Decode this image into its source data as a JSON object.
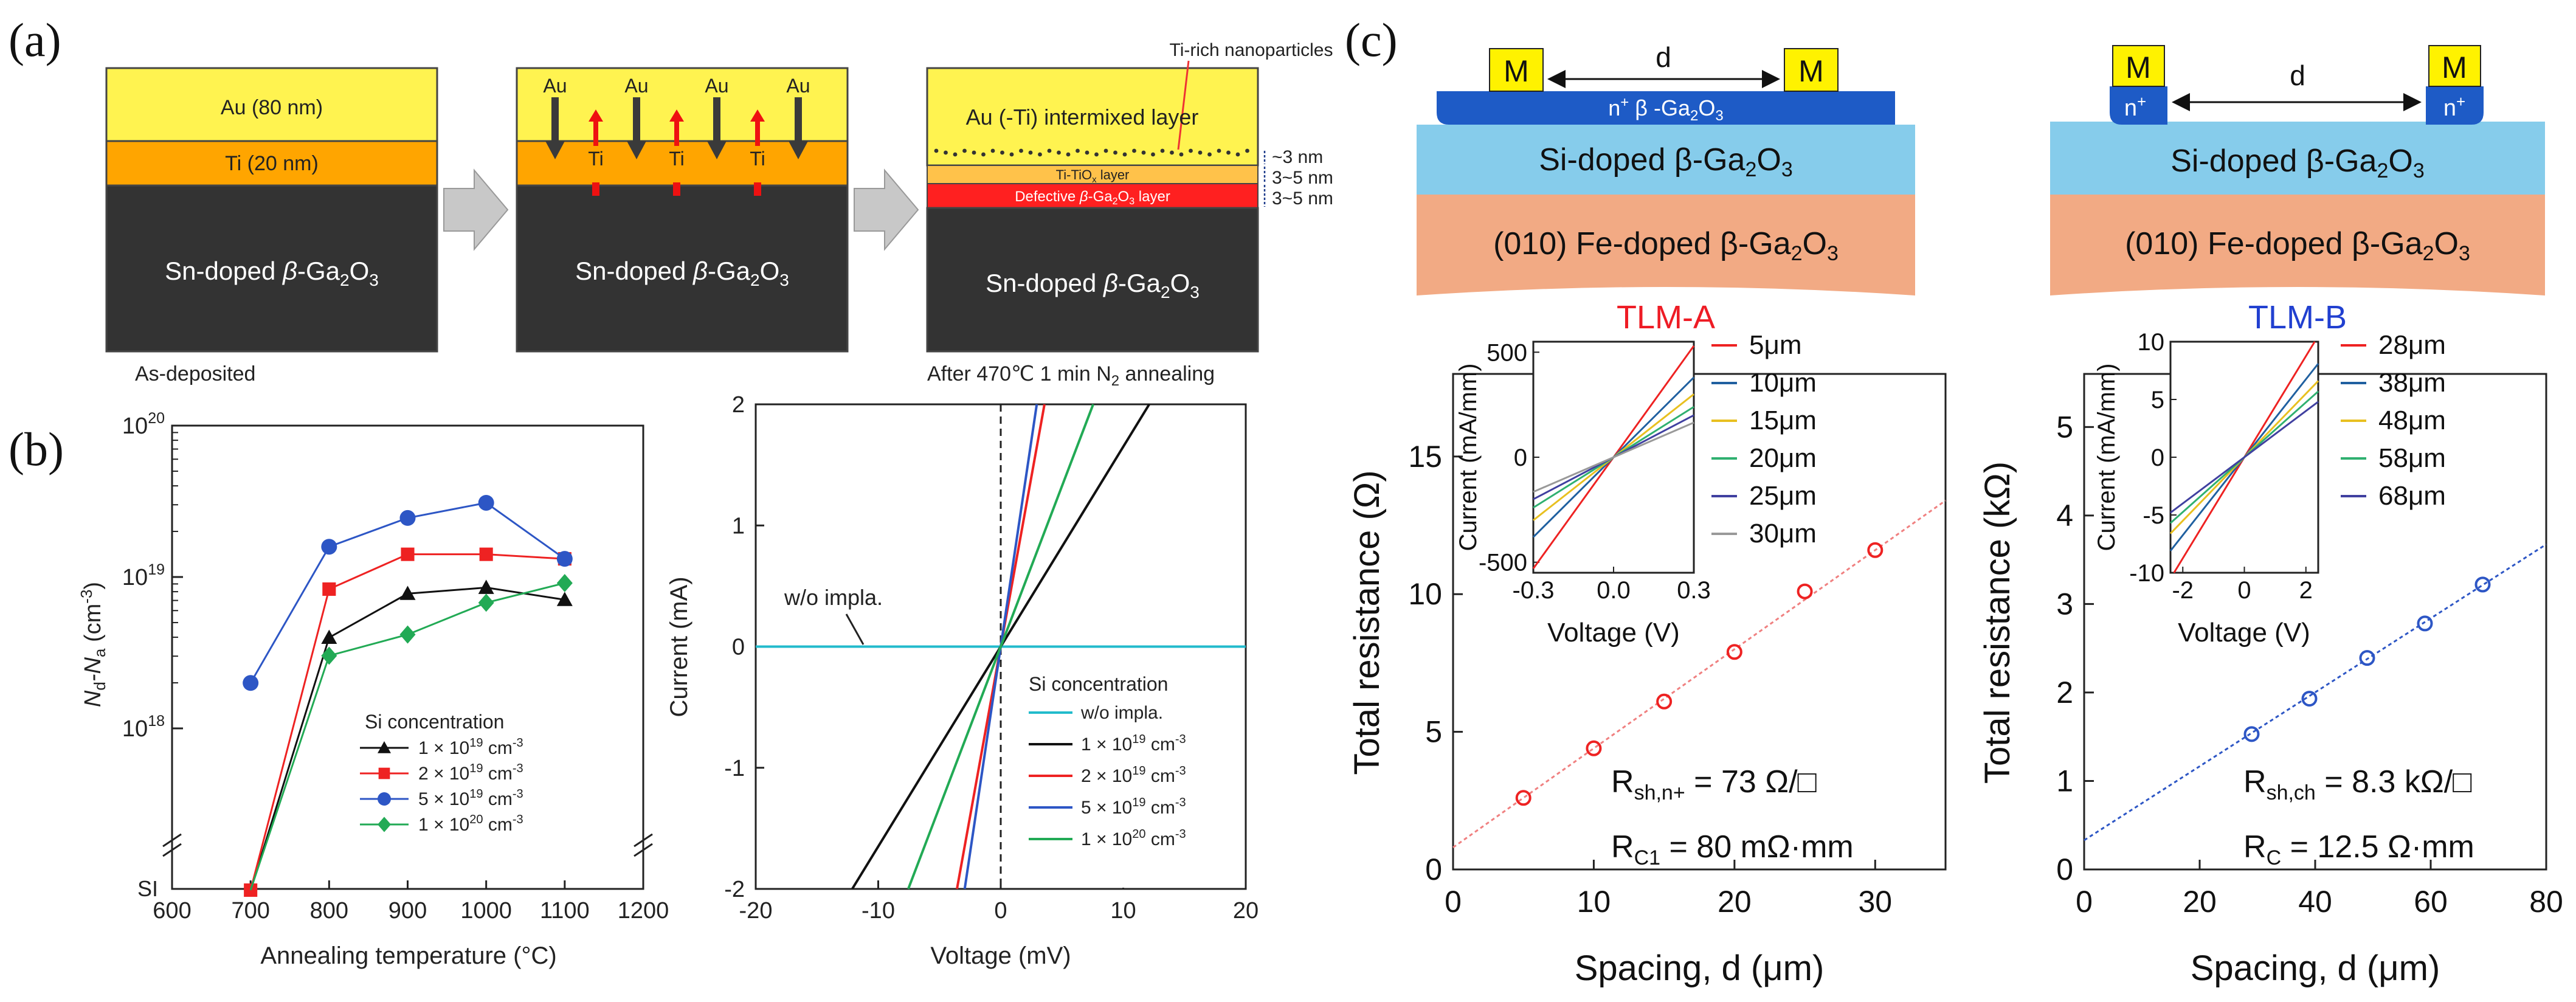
{
  "colors": {
    "au_gold": "#FFF350",
    "ti_orange": "#FFA500",
    "ti_orange_light": "#FFC24A",
    "ga2o3_dark": "#333333",
    "defect_red": "#FF2020",
    "arrow_gray": "#C8C8C8",
    "arrow_dark": "#3A3A3A",
    "arrow_red": "#EE1111",
    "metal_yellow": "#FFF200",
    "n_plus_blue": "#1E5BC6",
    "si_light_blue": "#86CCEB",
    "fe_orange": "#F2AA84",
    "black": "#111111",
    "red": "#EE2222",
    "blue": "#2D56C5",
    "green": "#22AA55",
    "cyan": "#22BBCC",
    "c1": "#2060A0",
    "c2": "#E8C020",
    "c3": "#30B070",
    "c4": "#4040A0",
    "c5": "#999999",
    "tlma_title": "#EE1C25",
    "tlmb_title": "#2140D0"
  },
  "panel_a": {
    "label": "(a)",
    "stack1": {
      "au": "Au (80 nm)",
      "ti": "Ti (20 nm)",
      "sub_pre": "Sn-doped ",
      "sub_beta": "β",
      "sub_mid": "-Ga",
      "sub_2": "2",
      "sub_o": "O",
      "sub_3": "3"
    },
    "stack2": {
      "arrow_labels_au": [
        "Au",
        "Au",
        "Au",
        "Au"
      ],
      "arrow_labels_ti": [
        "Ti",
        "Ti",
        "Ti"
      ],
      "sub_pre": "Sn-doped ",
      "sub_beta": "β",
      "sub_mid": "-Ga",
      "sub_2": "2",
      "sub_o": "O",
      "sub_3": "3"
    },
    "stack3": {
      "nano": "Ti-rich nanoparticles",
      "au": "Au (-Ti) intermixed layer",
      "tiox_pre": "Ti-TiO",
      "tiox_sub": "x",
      "tiox_post": " layer",
      "defect_pre": "Defective ",
      "defect_beta": "β",
      "defect_mid": "-Ga",
      "defect_2": "2",
      "defect_o": "O",
      "defect_3": "3",
      "defect_post": " layer",
      "sub_pre": "Sn-doped ",
      "sub_beta": "β",
      "sub_mid": "-Ga",
      "sub_2": "2",
      "sub_o": "O",
      "sub_3": "3",
      "thick1": "~3 nm",
      "thick2": "3~5 nm",
      "thick3": "3~5 nm"
    },
    "caption_left": "As-deposited",
    "caption_right_pre": "After 470℃  1 min N",
    "caption_right_sub": "2",
    "caption_right_post": " annealing"
  },
  "panel_b": {
    "label": "(b)"
  },
  "panel_c": {
    "label": "(c)",
    "structA": {
      "m": "M",
      "d": "d",
      "nplus": "n",
      "nplus_sup": "+",
      "nplus_rest": " β -Ga",
      "nplus_2": "2",
      "nplus_o": "O",
      "nplus_3": "3",
      "si": "Si-doped β-Ga",
      "si_2": "2",
      "si_o": "O",
      "si_3": "3",
      "fe": "(010) Fe-doped β-Ga",
      "fe_2": "2",
      "fe_o": "O",
      "fe_3": "3"
    },
    "structB": {
      "m": "M",
      "d": "d",
      "nplus": "n",
      "nplus_sup": "+",
      "si": "Si-doped β-Ga",
      "si_2": "2",
      "si_o": "O",
      "si_3": "3",
      "fe": "(010) Fe-doped β-Ga",
      "fe_2": "2",
      "fe_o": "O",
      "fe_3": "3"
    },
    "titleA": "TLM-A",
    "titleB": "TLM-B",
    "annotA1_main": "R",
    "annotA1_sub": "sh,n+",
    "annotA1_rest": " = 73 Ω/□",
    "annotA2_main": "R",
    "annotA2_sub": "C1",
    "annotA2_rest": " = 80 mΩ·mm",
    "annotB1_main": "R",
    "annotB1_sub": "sh,ch",
    "annotB1_rest": " = 8.3 kΩ/□",
    "annotB2_main": "R",
    "annotB2_sub": "C",
    "annotB2_rest": " = 12.5 Ω·mm"
  },
  "chart_data": [
    {
      "id": "b_left",
      "type": "line",
      "xlabel": "Annealing temperature (°C)",
      "ylabel_main": "N",
      "ylabel_d": "d",
      "ylabel_mid": "-N",
      "ylabel_a": "a",
      "ylabel_unit": " (cm",
      "ylabel_exp": "-3",
      "ylabel_close": ")",
      "xlim": [
        600,
        1200
      ],
      "xticks": [
        600,
        700,
        800,
        900,
        1000,
        1100,
        1200
      ],
      "ylim_log": [
        18,
        20
      ],
      "ytick_labels": [
        {
          "b": "10",
          "e": "18",
          "v": 18
        },
        {
          "b": "10",
          "e": "19",
          "v": 19
        },
        {
          "b": "10",
          "e": "20",
          "v": 20
        }
      ],
      "si_label": "SI",
      "legend_title": "Si concentration",
      "series": [
        {
          "name": "1 × 10",
          "exp": "19",
          "unit": " cm",
          "uexp": "-3",
          "color": "#111111",
          "marker": "triangle",
          "x": [
            700,
            800,
            900,
            1000,
            1100
          ],
          "log10": [
            null,
            18.6,
            18.89,
            18.93,
            18.85
          ]
        },
        {
          "name": "2 × 10",
          "exp": "19",
          "unit": " cm",
          "uexp": "-3",
          "color": "#EE2222",
          "marker": "square",
          "x": [
            700,
            800,
            900,
            1000,
            1100
          ],
          "log10": [
            null,
            18.92,
            19.15,
            19.15,
            19.12
          ]
        },
        {
          "name": "5 × 10",
          "exp": "19",
          "unit": " cm",
          "uexp": "-3",
          "color": "#2D56C5",
          "marker": "circle",
          "x": [
            700,
            800,
            900,
            1000,
            1100
          ],
          "log10": [
            18.3,
            19.2,
            19.39,
            19.49,
            19.12
          ]
        },
        {
          "name": "1 × 10",
          "exp": "20",
          "unit": " cm",
          "uexp": "-3",
          "color": "#22AA55",
          "marker": "diamond",
          "x": [
            700,
            800,
            900,
            1000,
            1100
          ],
          "log10": [
            null,
            18.48,
            18.62,
            18.83,
            18.96
          ]
        }
      ],
      "si_points": {
        "x": [
          700
        ],
        "note": "SI"
      }
    },
    {
      "id": "b_right",
      "type": "line",
      "xlabel": "Voltage (mV)",
      "ylabel": "Current (mA)",
      "xlim": [
        -20,
        20
      ],
      "ylim": [
        -2,
        2
      ],
      "xticks": [
        -20,
        -10,
        0,
        10,
        20
      ],
      "yticks": [
        -2,
        -1,
        0,
        1,
        2
      ],
      "annotation": "w/o impla.",
      "legend_title": "Si concentration",
      "series": [
        {
          "name": "w/o impla.",
          "exp": "",
          "unit": "",
          "uexp": "",
          "color": "#22BBCC",
          "slope": 0
        },
        {
          "name": "1 × 10",
          "exp": "19",
          "unit": " cm",
          "uexp": "-3",
          "color": "#111111",
          "slope": 0.165
        },
        {
          "name": "2 × 10",
          "exp": "19",
          "unit": " cm",
          "uexp": "-3",
          "color": "#EE2222",
          "slope": 0.56
        },
        {
          "name": "5 × 10",
          "exp": "19",
          "unit": " cm",
          "uexp": "-3",
          "color": "#2D56C5",
          "slope": 0.68
        },
        {
          "name": "1 × 10",
          "exp": "20",
          "unit": " cm",
          "uexp": "-3",
          "color": "#22AA55",
          "slope": 0.265
        }
      ]
    },
    {
      "id": "c_A",
      "type": "scatter",
      "xlabel": "Spacing, d (μm)",
      "ylabel": "Total resistance (Ω)",
      "xlim": [
        0,
        35
      ],
      "ylim": [
        0,
        18
      ],
      "xticks": [
        0,
        10,
        20,
        30
      ],
      "yticks": [
        0,
        5,
        10,
        15
      ],
      "points": {
        "x": [
          5,
          10,
          15,
          20,
          25,
          30
        ],
        "y": [
          2.6,
          4.4,
          6.1,
          7.9,
          10.1,
          11.6
        ]
      },
      "fit": {
        "intercept": 0.8,
        "slope": 0.36
      },
      "inset": {
        "xlabel": "Voltage (V)",
        "ylabel": "Current (mA/mm)",
        "xlim": [
          -0.3,
          0.3
        ],
        "ylim": [
          -550,
          550
        ],
        "xticks": [
          -0.3,
          0.0,
          0.3
        ],
        "xtick_labels": [
          "-0.3",
          "0.0",
          "0.3"
        ],
        "yticks": [
          -500,
          0,
          500
        ],
        "ytick_labels": [
          "-500",
          "0",
          "500"
        ],
        "series": [
          {
            "name": "5μm",
            "color": "#EE2222",
            "ymax": 530
          },
          {
            "name": "10μm",
            "color": "#2060A0",
            "ymax": 380
          },
          {
            "name": "15μm",
            "color": "#E8C020",
            "ymax": 300
          },
          {
            "name": "20μm",
            "color": "#30B070",
            "ymax": 240
          },
          {
            "name": "25μm",
            "color": "#4040A0",
            "ymax": 200
          },
          {
            "name": "30μm",
            "color": "#999999",
            "ymax": 165
          }
        ]
      }
    },
    {
      "id": "c_B",
      "type": "scatter",
      "xlabel": "Spacing, d (μm)",
      "ylabel": "Total resistance (kΩ)",
      "xlim": [
        0,
        80
      ],
      "ylim": [
        0,
        5.6
      ],
      "xticks": [
        0,
        20,
        40,
        60,
        80
      ],
      "yticks": [
        0,
        1,
        2,
        3,
        4,
        5
      ],
      "points": {
        "x": [
          29,
          39,
          49,
          59,
          69
        ],
        "y": [
          1.53,
          1.93,
          2.39,
          2.78,
          3.22
        ]
      },
      "fit": {
        "intercept": 0.33,
        "slope": 0.0418
      },
      "inset": {
        "xlabel": "Voltage (V)",
        "ylabel": "Current (mA/mm)",
        "xlim": [
          -2.4,
          2.4
        ],
        "ylim": [
          -10,
          10
        ],
        "xticks": [
          -2,
          0,
          2
        ],
        "xtick_labels": [
          "-2",
          "0",
          "2"
        ],
        "yticks": [
          -10,
          -5,
          0,
          5,
          10
        ],
        "ytick_labels": [
          "-10",
          "-5",
          "0",
          "5",
          "10"
        ],
        "series": [
          {
            "name": "28μm",
            "color": "#EE2222",
            "ymax": 10.5
          },
          {
            "name": "38μm",
            "color": "#2060A0",
            "ymax": 8.1
          },
          {
            "name": "48μm",
            "color": "#E8C020",
            "ymax": 6.6
          },
          {
            "name": "58μm",
            "color": "#30B070",
            "ymax": 5.7
          },
          {
            "name": "68μm",
            "color": "#4040A0",
            "ymax": 4.8
          }
        ]
      }
    }
  ]
}
